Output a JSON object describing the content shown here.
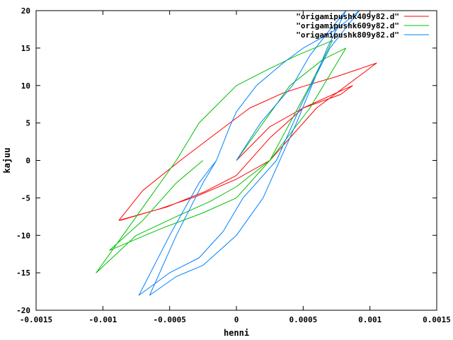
{
  "chart_data": {
    "type": "line",
    "title": "",
    "xlabel": "henni",
    "ylabel": "kajuu",
    "xlim": [
      -0.0015,
      0.0015
    ],
    "ylim": [
      -20,
      20
    ],
    "x_ticks": [
      -0.0015,
      -0.001,
      -0.0005,
      0,
      0.0005,
      0.001,
      0.0015
    ],
    "x_tick_labels": [
      "-0.0015",
      "-0.001",
      "-0.0005",
      "0",
      "0.0005",
      "0.001",
      "0.0015"
    ],
    "y_ticks": [
      -20,
      -15,
      -10,
      -5,
      0,
      5,
      10,
      15,
      20
    ],
    "y_tick_labels": [
      "-20",
      "-15",
      "-10",
      "-5",
      "0",
      "5",
      "10",
      "15",
      "20"
    ],
    "grid": false,
    "legend_position": "top-right",
    "series": [
      {
        "name": "\"origamipushk409y82.d\"",
        "color": "#ff0000",
        "points": [
          [
            0,
            0
          ],
          [
            0.00025,
            4.5
          ],
          [
            0.0005,
            7
          ],
          [
            0.00078,
            8.8
          ],
          [
            0.00087,
            10
          ],
          [
            0.0005,
            7
          ],
          [
            0.00025,
            3
          ],
          [
            0,
            -2
          ],
          [
            -0.00024,
            -4.2
          ],
          [
            -0.00052,
            -6.2
          ],
          [
            -0.00088,
            -8
          ],
          [
            -0.0007,
            -4
          ],
          [
            -0.00042,
            0
          ],
          [
            -5e-05,
            5
          ],
          [
            0.0001,
            7
          ],
          [
            0.00035,
            9
          ],
          [
            0.00052,
            10
          ],
          [
            0.00075,
            11.2
          ],
          [
            0.00105,
            13
          ],
          [
            0.0006,
            7
          ],
          [
            0.00025,
            0
          ],
          [
            0,
            -2.5
          ],
          [
            -0.0003,
            -4.8
          ],
          [
            -0.00058,
            -6.5
          ],
          [
            -0.00087,
            -8
          ]
        ]
      },
      {
        "name": "\"origamipushk609y82.d\"",
        "color": "#00c000",
        "points": [
          [
            0,
            0
          ],
          [
            0.0002,
            5
          ],
          [
            0.0004,
            10
          ],
          [
            0.00065,
            13.5
          ],
          [
            0.00082,
            15
          ],
          [
            0.00055,
            7
          ],
          [
            0.00025,
            0
          ],
          [
            0,
            -3.5
          ],
          [
            -0.0002,
            -5.5
          ],
          [
            -0.00045,
            -7.5
          ],
          [
            -0.00075,
            -10
          ],
          [
            -0.00105,
            -15
          ],
          [
            -0.00075,
            -7.5
          ],
          [
            -0.00045,
            0
          ],
          [
            -0.00028,
            5
          ],
          [
            0,
            10
          ],
          [
            0.00022,
            12
          ],
          [
            0.00045,
            14
          ],
          [
            0.00072,
            16
          ],
          [
            0.00055,
            10
          ],
          [
            0.00025,
            0
          ],
          [
            0,
            -5
          ],
          [
            -0.00025,
            -7
          ],
          [
            -0.00055,
            -9
          ],
          [
            -0.00095,
            -12
          ],
          [
            -0.0007,
            -8
          ],
          [
            -0.00045,
            -3
          ],
          [
            -0.00025,
            0
          ]
        ]
      },
      {
        "name": "\"origamipushk809y82.d\"",
        "color": "#0080ff",
        "points": [
          [
            0,
            0
          ],
          [
            0.00018,
            5
          ],
          [
            0.00042,
            10
          ],
          [
            0.00055,
            14
          ],
          [
            0.00068,
            17
          ],
          [
            0.00082,
            20
          ],
          [
            0.00068,
            15
          ],
          [
            0.00045,
            5
          ],
          [
            0.0002,
            -5
          ],
          [
            0,
            -10
          ],
          [
            -0.00025,
            -14
          ],
          [
            -0.00045,
            -15.5
          ],
          [
            -0.00065,
            -18
          ],
          [
            -0.00045,
            -10
          ],
          [
            -0.00025,
            -3
          ],
          [
            -0.00015,
            0
          ],
          [
            -5e-05,
            4.5
          ],
          [
            0,
            6.5
          ],
          [
            0.00015,
            10
          ],
          [
            0.00035,
            13
          ],
          [
            0.0005,
            15
          ],
          [
            0.00075,
            17.5
          ],
          [
            0.00092,
            20
          ],
          [
            0.0007,
            15
          ],
          [
            0.0005,
            8
          ],
          [
            0.0003,
            0
          ],
          [
            5e-05,
            -5
          ],
          [
            -0.0001,
            -9.5
          ],
          [
            -0.00028,
            -13
          ],
          [
            -0.0005,
            -15
          ],
          [
            -0.00073,
            -18
          ],
          [
            -0.0005,
            -10
          ],
          [
            -0.00028,
            -3
          ],
          [
            -0.00015,
            0
          ]
        ]
      }
    ]
  }
}
